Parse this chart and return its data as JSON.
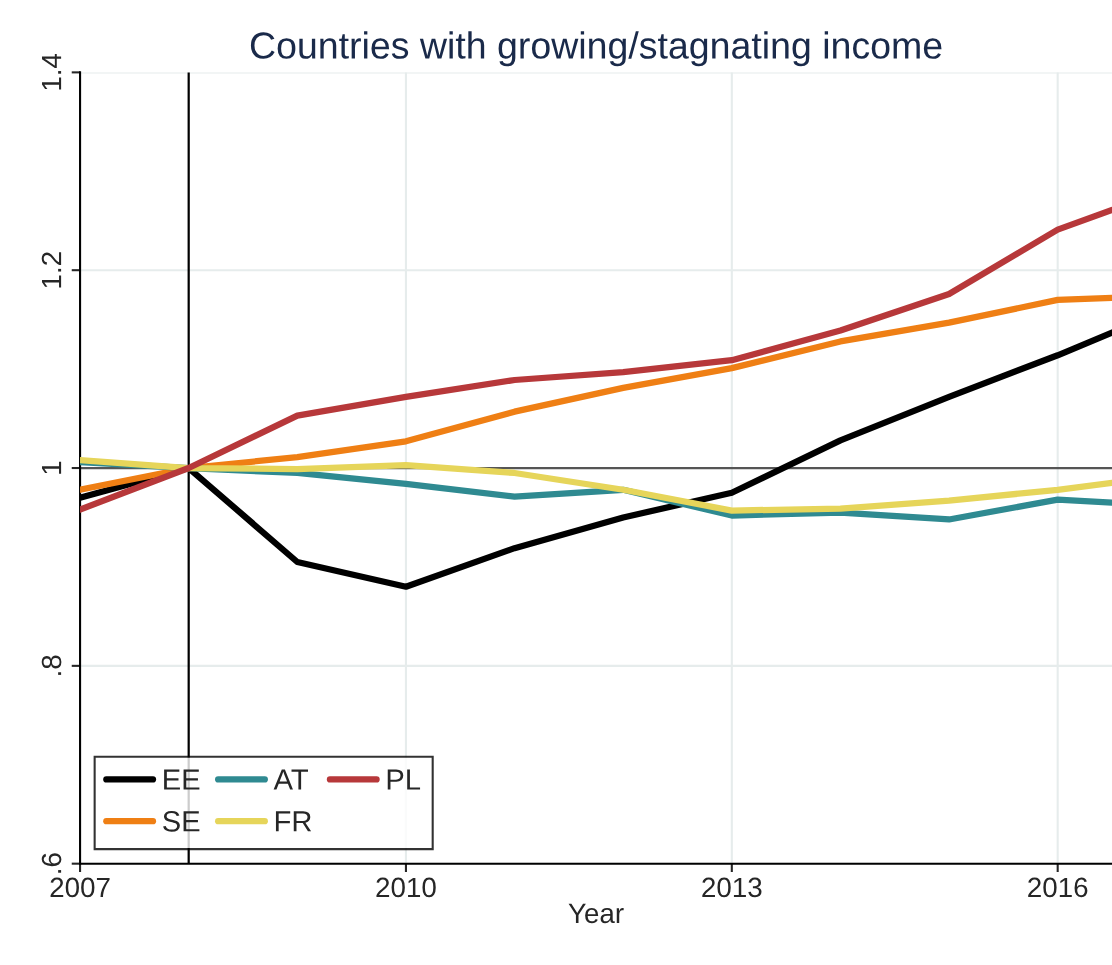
{
  "chart_data": {
    "type": "line",
    "title": "Countries with growing/stagnating income",
    "xlabel": "Year",
    "x": [
      2007,
      2008,
      2009,
      2010,
      2011,
      2012,
      2013,
      2014,
      2015,
      2016,
      2016.5
    ],
    "series": [
      {
        "name": "EE",
        "color": "#000000",
        "values": [
          0.97,
          1.0,
          0.905,
          0.88,
          0.919,
          0.95,
          0.975,
          1.028,
          1.072,
          1.114,
          1.137
        ]
      },
      {
        "name": "SE",
        "color": "#ef7f14",
        "values": [
          0.978,
          1.0,
          1.011,
          1.027,
          1.057,
          1.081,
          1.101,
          1.128,
          1.147,
          1.17,
          1.172
        ]
      },
      {
        "name": "AT",
        "color": "#2f8a91",
        "values": [
          1.006,
          1.0,
          0.995,
          0.984,
          0.971,
          0.978,
          0.952,
          0.955,
          0.948,
          0.968,
          0.965
        ]
      },
      {
        "name": "FR",
        "color": "#e6d55a",
        "values": [
          1.008,
          1.0,
          0.999,
          1.003,
          0.995,
          0.978,
          0.957,
          0.959,
          0.967,
          0.978,
          0.985
        ]
      },
      {
        "name": "PL",
        "color": "#b7383a",
        "values": [
          0.958,
          1.0,
          1.053,
          1.072,
          1.089,
          1.097,
          1.109,
          1.139,
          1.176,
          1.241,
          1.261
        ]
      }
    ],
    "xlim": [
      2007,
      2016.5
    ],
    "xticks": [
      2007,
      2010,
      2013,
      2016
    ],
    "ylim": [
      0.6,
      1.4
    ],
    "yticks": [
      {
        "value": 0.6,
        "label": ".6"
      },
      {
        "value": 0.8,
        "label": ".8"
      },
      {
        "value": 1.0,
        "label": "1"
      },
      {
        "value": 1.2,
        "label": "1.2"
      },
      {
        "value": 1.4,
        "label": "1.4"
      }
    ],
    "ref_lines": [
      {
        "axis": "x",
        "value": 2008,
        "color": "#000000"
      },
      {
        "axis": "y",
        "value": 1.0,
        "color": "#555555"
      }
    ],
    "grid": true,
    "legend": "bottom left",
    "marker": "none",
    "line_style": "solid"
  }
}
